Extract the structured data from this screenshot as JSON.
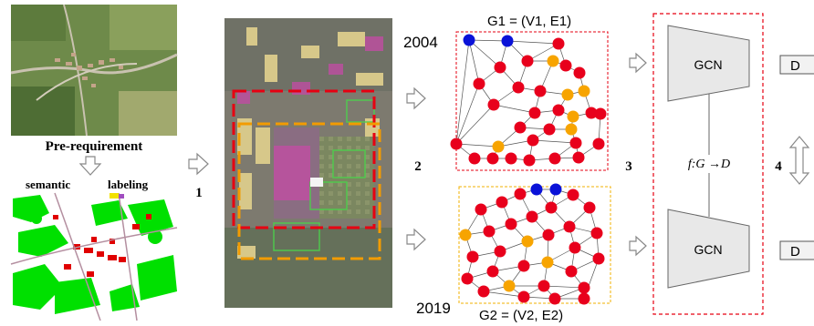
{
  "left_panel": {
    "prereq_label": "Pre-requirement",
    "semantic_label": "semantic",
    "labeling_label": "labeling",
    "step1": "1"
  },
  "graphs": {
    "top_title": "G1 = (V1, E1)",
    "top_year": "2004",
    "bottom_title": "G2 = (V2, E2)",
    "bottom_year": "2019",
    "step2": "2",
    "step3": "3",
    "node_colors": {
      "red": "#e8001c",
      "orange": "#f7a400",
      "blue": "#0a12d8"
    }
  },
  "model": {
    "gcn_top": "GCN",
    "gcn_bottom": "GCN",
    "mapping": "f:G →D",
    "step4": "4",
    "out_top": "D",
    "out_bottom": "D"
  },
  "colors": {
    "red_dash": "#e60012",
    "orange_dash": "#f29b00",
    "gcn_fill": "#e8e8e8"
  }
}
